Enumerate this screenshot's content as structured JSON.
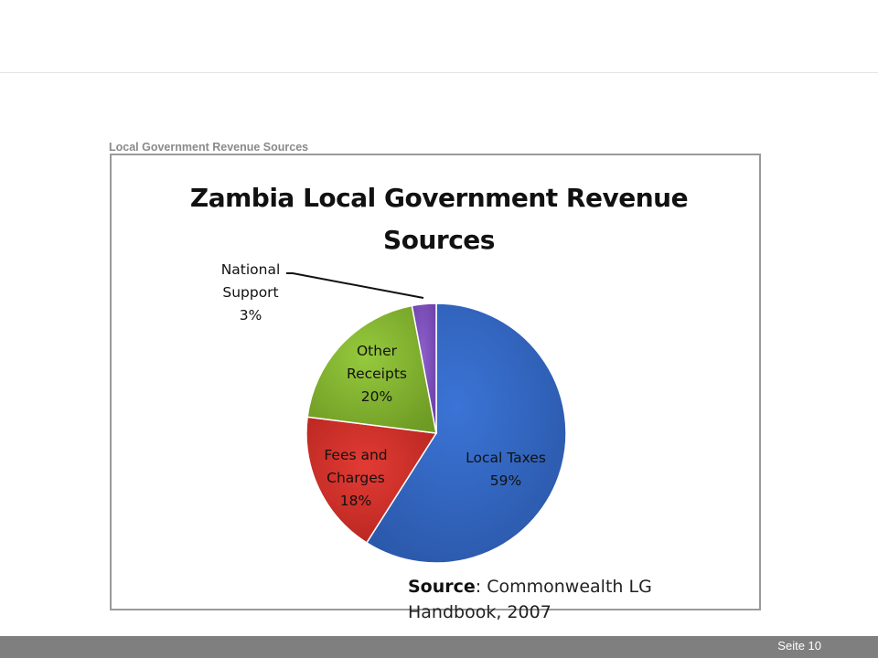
{
  "slide": {
    "caption": "Local Government Revenue Sources",
    "page_label": "Seite 10"
  },
  "chart_data": {
    "type": "pie",
    "title_line1": "Zambia Local Government Revenue",
    "title_line2": "Sources",
    "slices": [
      {
        "name": "Local Taxes",
        "value": 59,
        "label_lines": [
          "Local Taxes",
          "59%"
        ],
        "color": "#3b74d6",
        "dark": "#2a57a8"
      },
      {
        "name": "Fees and Charges",
        "value": 18,
        "label_lines": [
          "Fees and",
          "Charges",
          "18%"
        ],
        "color": "#e23b34",
        "dark": "#b5251f"
      },
      {
        "name": "Other Receipts",
        "value": 20,
        "label_lines": [
          "Other",
          "Receipts",
          "20%"
        ],
        "color": "#96c93d",
        "dark": "#6e9b24"
      },
      {
        "name": "National Support",
        "value": 3,
        "label_lines": [
          "National",
          "Support",
          "3%"
        ],
        "color": "#8d5fc9",
        "dark": "#6a3fa6"
      }
    ],
    "source_bold": "Source",
    "source_rest_line1": ": Commonwealth LG",
    "source_line2": "Handbook, 2007"
  }
}
